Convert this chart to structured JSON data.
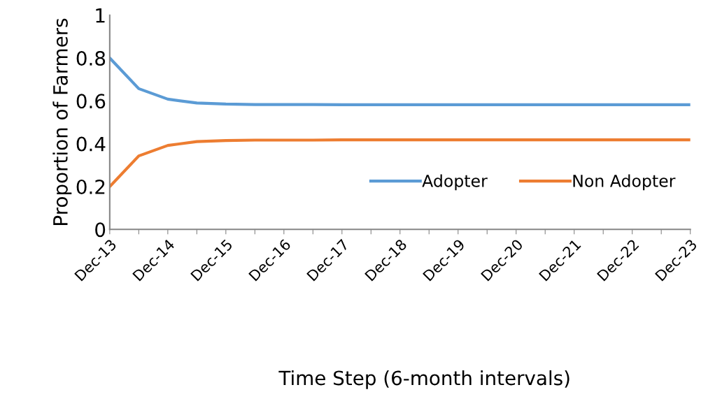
{
  "chart_data": {
    "type": "line",
    "xlabel": "Time Step (6-month intervals)",
    "ylabel": "Proportion of Farmers",
    "categories": [
      "Dec-13",
      null,
      "Dec-14",
      null,
      "Dec-15",
      null,
      "Dec-16",
      null,
      "Dec-17",
      null,
      "Dec-18",
      null,
      "Dec-19",
      null,
      "Dec-20",
      null,
      "Dec-21",
      null,
      "Dec-22",
      null,
      "Dec-23"
    ],
    "series": [
      {
        "name": "Adopter",
        "color": "#5b9bd5",
        "values": [
          0.8,
          0.657,
          0.608,
          0.59,
          0.585,
          0.583,
          0.583,
          0.583,
          0.582,
          0.582,
          0.582,
          0.582,
          0.582,
          0.582,
          0.582,
          0.582,
          0.582,
          0.582,
          0.582,
          0.582,
          0.582
        ]
      },
      {
        "name": "Non Adopter",
        "color": "#ed7d31",
        "values": [
          0.2,
          0.343,
          0.392,
          0.41,
          0.415,
          0.417,
          0.417,
          0.417,
          0.418,
          0.418,
          0.418,
          0.418,
          0.418,
          0.418,
          0.418,
          0.418,
          0.418,
          0.418,
          0.418,
          0.418,
          0.418
        ]
      }
    ],
    "ylim": [
      0,
      1
    ],
    "yticks": [
      0,
      0.2,
      0.4,
      0.6,
      0.8,
      1
    ],
    "grid": false,
    "legend": "right",
    "marker": "none",
    "line_style": "solid"
  }
}
